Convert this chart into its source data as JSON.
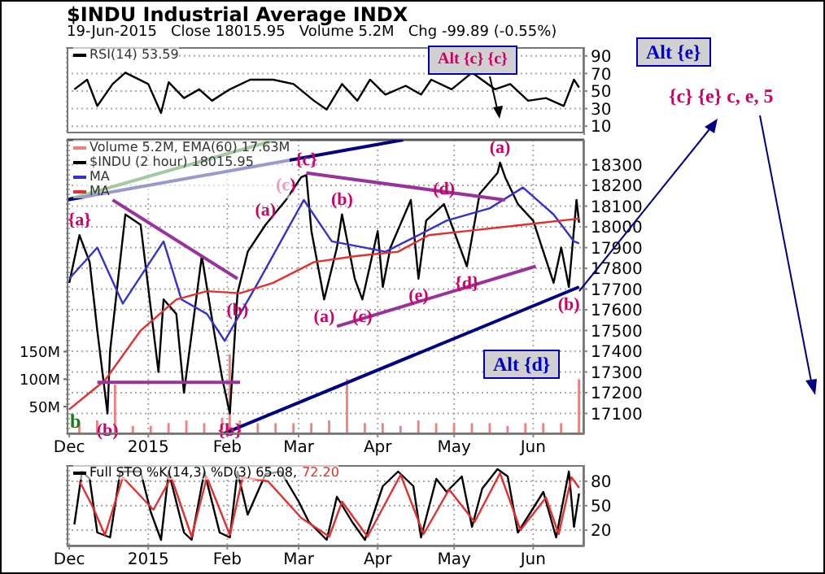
{
  "chart_data": [
    {
      "type": "line",
      "title": "$INDU Industrial Average INDX",
      "subtitle": "19-Jun-2015   Close 18015.95   Volume 5.2M   Chg -99.89 (-0.55%)",
      "xlim": [
        "2014-11-30",
        "2015-06-21"
      ],
      "xticks": [
        {
          "value": "2014-12-01",
          "label": null
        },
        {
          "value": "2015-01-01",
          "label": null
        },
        {
          "value": "2015-02-01",
          "label": null
        },
        {
          "value": "2015-03-01",
          "label": null
        },
        {
          "value": "2015-04-01",
          "label": null
        },
        {
          "value": "2015-05-01",
          "label": null
        },
        {
          "value": "2015-06-01",
          "label": null
        }
      ],
      "ylim": [
        0,
        100
      ],
      "yticks": [
        10,
        30,
        50,
        70,
        90
      ],
      "tick_labels": "y",
      "grid": true,
      "legend": "top left",
      "series": [
        {
          "name": "RSI(14) 53.59",
          "color": "#000000",
          "x": [
            "2014-12-03",
            "2014-12-08",
            "2014-12-12",
            "2014-12-18",
            "2014-12-23",
            "2015-01-01",
            "2015-01-06",
            "2015-01-09",
            "2015-01-15",
            "2015-01-21",
            "2015-01-26",
            "2015-02-02",
            "2015-02-10",
            "2015-02-19",
            "2015-02-27",
            "2015-03-07",
            "2015-03-12",
            "2015-03-18",
            "2015-03-24",
            "2015-03-29",
            "2015-04-04",
            "2015-04-12",
            "2015-04-18",
            "2015-04-22",
            "2015-04-30",
            "2015-05-08",
            "2015-05-17",
            "2015-05-23",
            "2015-05-30",
            "2015-06-06",
            "2015-06-13",
            "2015-06-17",
            "2015-06-19"
          ],
          "values": [
            52,
            63,
            33,
            58,
            71,
            58,
            25,
            60,
            42,
            52,
            39,
            52,
            63,
            63,
            58,
            39,
            29,
            58,
            39,
            63,
            46,
            56,
            46,
            63,
            52,
            71,
            52,
            58,
            39,
            42,
            33,
            63,
            54
          ]
        }
      ]
    },
    {
      "type": "line",
      "xlim": [
        "2014-11-30",
        "2015-06-21"
      ],
      "xticks": [
        {
          "value": "2014-12-01",
          "label": "Dec"
        },
        {
          "value": "2015-01-01",
          "label": "2015"
        },
        {
          "value": "2015-02-01",
          "label": "Feb"
        },
        {
          "value": "2015-03-01",
          "label": "Mar"
        },
        {
          "value": "2015-04-01",
          "label": "Apr"
        },
        {
          "value": "2015-05-01",
          "label": "May"
        },
        {
          "value": "2015-06-01",
          "label": "Jun"
        }
      ],
      "ylim": [
        17000,
        18420
      ],
      "yticks": [
        17100,
        17200,
        17300,
        17400,
        17500,
        17600,
        17700,
        17800,
        17900,
        18000,
        18100,
        18200,
        18300
      ],
      "y2lim": [
        0,
        535
      ],
      "y2ticks": [
        {
          "value": 50,
          "label": "50M"
        },
        {
          "value": 100,
          "label": "100M"
        },
        {
          "value": 150,
          "label": "150M"
        }
      ],
      "grid": true,
      "legend": "top left",
      "annotations": [
        "Alt {c} {c}",
        "Alt {e}",
        "{c} {e} c, e, 5",
        "Alt {d}",
        "b",
        {
          "text": "{a}",
          "x": "2014-12-05",
          "y": 17960
        },
        {
          "text": "(b)",
          "x": "2014-12-16",
          "y": 17100
        },
        {
          "text": "{b}",
          "x": "2015-02-02",
          "y": 17100
        },
        {
          "text": "(a)",
          "x": "2015-02-16",
          "y": 18010
        },
        {
          "text": "(b)",
          "x": "2015-02-05",
          "y": 17680
        },
        {
          "text": "(c)",
          "x": "2015-02-24",
          "y": 18130
        },
        {
          "text": "{c}",
          "x": "2015-03-04",
          "y": 18250
        },
        {
          "text": "(b)",
          "x": "2015-03-18",
          "y": 18060
        },
        {
          "text": "(a)",
          "x": "2015-03-11",
          "y": 17650
        },
        {
          "text": "(c)",
          "x": "2015-03-26",
          "y": 17650
        },
        {
          "text": "(d)",
          "x": "2015-04-27",
          "y": 18110
        },
        {
          "text": "(e)",
          "x": "2015-04-17",
          "y": 17750
        },
        {
          "text": "{d}",
          "x": "2015-05-06",
          "y": 17810
        },
        {
          "text": "(a)",
          "x": "2015-05-19",
          "y": 18310
        },
        {
          "text": "(b)",
          "x": "2015-06-15",
          "y": 17710
        }
      ],
      "series": [
        {
          "name": "Volume 5.2M, EMA(60) 17.63M",
          "type": "bar",
          "axis": "y2",
          "color": "#f08080",
          "x": [
            "2014-12-05",
            "2014-12-12",
            "2014-12-19",
            "2014-12-26",
            "2015-01-02",
            "2015-01-09",
            "2015-01-16",
            "2015-01-23",
            "2015-01-30",
            "2015-02-02",
            "2015-02-06",
            "2015-02-13",
            "2015-02-20",
            "2015-02-27",
            "2015-03-06",
            "2015-03-13",
            "2015-03-20",
            "2015-03-27",
            "2015-04-03",
            "2015-04-10",
            "2015-04-17",
            "2015-04-24",
            "2015-05-01",
            "2015-05-08",
            "2015-05-15",
            "2015-05-22",
            "2015-05-29",
            "2015-06-05",
            "2015-06-12",
            "2015-06-19"
          ],
          "values": [
            20,
            25,
            90,
            15,
            15,
            20,
            25,
            20,
            30,
            145,
            25,
            20,
            20,
            20,
            20,
            25,
            100,
            20,
            20,
            15,
            25,
            20,
            20,
            20,
            20,
            15,
            20,
            20,
            20,
            100
          ]
        },
        {
          "name": "$INDU (2 hour) 18015.95",
          "color": "#000000",
          "x": [
            "2014-12-01",
            "2014-12-05",
            "2014-12-09",
            "2014-12-12",
            "2014-12-16",
            "2014-12-17",
            "2014-12-23",
            "2014-12-29",
            "2015-01-05",
            "2015-01-07",
            "2015-01-12",
            "2015-01-15",
            "2015-01-22",
            "2015-01-27",
            "2015-01-30",
            "2015-02-02",
            "2015-02-05",
            "2015-02-09",
            "2015-02-16",
            "2015-02-24",
            "2015-03-02",
            "2015-03-04",
            "2015-03-06",
            "2015-03-11",
            "2015-03-16",
            "2015-03-18",
            "2015-03-23",
            "2015-03-26",
            "2015-04-01",
            "2015-04-03",
            "2015-04-06",
            "2015-04-14",
            "2015-04-17",
            "2015-04-20",
            "2015-04-27",
            "2015-05-06",
            "2015-05-11",
            "2015-05-18",
            "2015-05-19",
            "2015-05-21",
            "2015-05-26",
            "2015-06-01",
            "2015-06-09",
            "2015-06-12",
            "2015-06-15",
            "2015-06-18",
            "2015-06-19"
          ],
          "values": [
            17730,
            17960,
            17830,
            17500,
            17100,
            17400,
            18060,
            18010,
            17300,
            17650,
            17580,
            17200,
            17860,
            17480,
            17270,
            17100,
            17680,
            17880,
            18010,
            18130,
            18240,
            18250,
            17980,
            17650,
            17900,
            18060,
            17750,
            17650,
            17980,
            17710,
            17900,
            18130,
            17750,
            18030,
            18110,
            17810,
            18160,
            18260,
            18310,
            18240,
            18110,
            18030,
            17730,
            17900,
            17710,
            18130,
            18020
          ]
        },
        {
          "name": "MA",
          "color": "#3333cc",
          "x": [
            "2014-12-01",
            "2014-12-12",
            "2014-12-22",
            "2015-01-07",
            "2015-01-14",
            "2015-01-24",
            "2015-01-31",
            "2015-02-06",
            "2015-02-13",
            "2015-03-03",
            "2015-03-14",
            "2015-03-27",
            "2015-04-04",
            "2015-04-17",
            "2015-04-28",
            "2015-05-15",
            "2015-05-28",
            "2015-06-09",
            "2015-06-17",
            "2015-06-19"
          ],
          "values": [
            17750,
            17900,
            17630,
            17930,
            17650,
            17580,
            17450,
            17580,
            17730,
            18130,
            17930,
            17900,
            17880,
            17960,
            18030,
            18090,
            18190,
            18060,
            17930,
            17920
          ]
        },
        {
          "name": "MA",
          "color": "#e03030",
          "x": [
            "2014-12-01",
            "2014-12-15",
            "2014-12-29",
            "2015-01-12",
            "2015-01-24",
            "2015-02-06",
            "2015-02-19",
            "2015-03-07",
            "2015-03-24",
            "2015-04-09",
            "2015-04-21",
            "2015-05-06",
            "2015-05-28",
            "2015-06-19"
          ],
          "values": [
            17120,
            17260,
            17500,
            17650,
            17690,
            17680,
            17730,
            17830,
            17860,
            17880,
            17960,
            17980,
            18010,
            18040
          ]
        },
        {
          "type": "line",
          "color": "#1a7a1a",
          "x": [
            "2014-11-30",
            "2015-02-20"
          ],
          "values": [
            18130,
            18420
          ]
        },
        {
          "type": "line",
          "color": "#000080",
          "x": [
            "2014-11-30",
            "2015-04-11"
          ],
          "values": [
            18130,
            18420
          ]
        },
        {
          "type": "line",
          "color": "#000080",
          "x": [
            "2015-01-30",
            "2015-06-19"
          ],
          "values": [
            17000,
            17710
          ]
        },
        {
          "type": "line",
          "color": "#993399",
          "x": [
            "2014-12-18",
            "2015-02-05"
          ],
          "values": [
            18130,
            17750
          ]
        },
        {
          "type": "line",
          "color": "#993399",
          "x": [
            "2014-12-12",
            "2015-02-06"
          ],
          "values": [
            17250,
            17250
          ]
        },
        {
          "type": "line",
          "color": "#993399",
          "x": [
            "2015-03-04",
            "2015-05-21"
          ],
          "values": [
            18260,
            18130
          ]
        },
        {
          "type": "line",
          "color": "#993399",
          "x": [
            "2015-03-16",
            "2015-06-02"
          ],
          "values": [
            17520,
            17810
          ]
        }
      ]
    },
    {
      "type": "line",
      "xlim": [
        "2014-11-30",
        "2015-06-21"
      ],
      "xticks": [
        {
          "value": "2014-12-01",
          "label": "Dec"
        },
        {
          "value": "2015-01-01",
          "label": "2015"
        },
        {
          "value": "2015-02-01",
          "label": "Feb"
        },
        {
          "value": "2015-03-01",
          "label": "Mar"
        },
        {
          "value": "2015-04-01",
          "label": "Apr"
        },
        {
          "value": "2015-05-01",
          "label": "May"
        },
        {
          "value": "2015-06-01",
          "label": "Jun"
        }
      ],
      "ylim": [
        0,
        100
      ],
      "yticks": [
        20,
        50,
        80
      ],
      "grid": true,
      "legend": "top left",
      "series": [
        {
          "name": "Full STO %K(14,3) %D(3) 65.08,",
          "color": "#000000",
          "x": [
            "2014-12-03",
            "2014-12-06",
            "2014-12-09",
            "2014-12-12",
            "2014-12-17",
            "2014-12-21",
            "2014-12-29",
            "2015-01-02",
            "2015-01-06",
            "2015-01-09",
            "2015-01-15",
            "2015-01-18",
            "2015-01-23",
            "2015-01-29",
            "2015-02-02",
            "2015-02-05",
            "2015-02-09",
            "2015-02-16",
            "2015-02-22",
            "2015-03-01",
            "2015-03-05",
            "2015-03-12",
            "2015-03-16",
            "2015-03-22",
            "2015-03-27",
            "2015-04-03",
            "2015-04-09",
            "2015-04-15",
            "2015-04-18",
            "2015-04-24",
            "2015-04-28",
            "2015-05-04",
            "2015-05-08",
            "2015-05-12",
            "2015-05-18",
            "2015-05-22",
            "2015-05-26",
            "2015-05-31",
            "2015-06-05",
            "2015-06-10",
            "2015-06-15",
            "2015-06-17",
            "2015-06-19"
          ],
          "values": [
            27,
            92,
            83,
            17,
            11,
            92,
            92,
            42,
            8,
            92,
            17,
            8,
            92,
            17,
            11,
            92,
            39,
            89,
            92,
            55,
            30,
            8,
            61,
            30,
            8,
            74,
            92,
            74,
            11,
            83,
            67,
            86,
            24,
            71,
            95,
            86,
            17,
            42,
            67,
            11,
            92,
            24,
            65
          ]
        },
        {
          "name": "72.20",
          "color": "#e03030",
          "x": [
            "2014-12-05",
            "2014-12-10",
            "2014-12-15",
            "2014-12-22",
            "2015-01-03",
            "2015-01-10",
            "2015-01-18",
            "2015-01-24",
            "2015-02-02",
            "2015-02-07",
            "2015-02-17",
            "2015-03-02",
            "2015-03-13",
            "2015-03-18",
            "2015-03-28",
            "2015-04-10",
            "2015-04-19",
            "2015-04-29",
            "2015-05-09",
            "2015-05-19",
            "2015-05-27",
            "2015-06-06",
            "2015-06-11",
            "2015-06-16",
            "2015-06-19"
          ],
          "values": [
            80,
            50,
            14,
            85,
            45,
            85,
            12,
            85,
            14,
            85,
            80,
            35,
            12,
            55,
            12,
            88,
            15,
            70,
            30,
            90,
            20,
            60,
            15,
            85,
            72
          ]
        }
      ]
    }
  ]
}
